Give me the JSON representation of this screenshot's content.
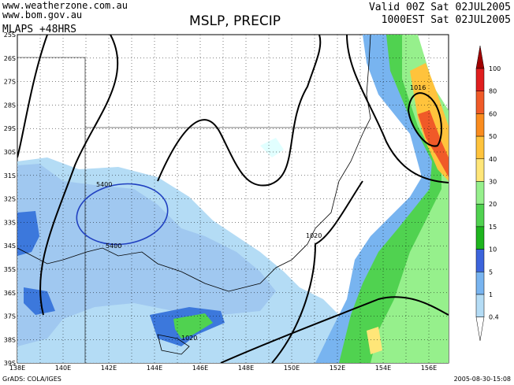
{
  "header": {
    "site1": "www.weatherzone.com.au",
    "site2": "www.bom.gov.au",
    "model": "MLAPS +48HRS",
    "title": "MSLP, PRECIP",
    "valid": "Valid 00Z Sat 02JUL2005",
    "local": "1000EST Sat 02JUL2005"
  },
  "latitudes": [
    "25S",
    "26S",
    "27S",
    "28S",
    "29S",
    "30S",
    "31S",
    "32S",
    "33S",
    "34S",
    "35S",
    "36S",
    "37S",
    "38S",
    "39S"
  ],
  "longitudes": [
    "138E",
    "140E",
    "142E",
    "144E",
    "146E",
    "148E",
    "150E",
    "152E",
    "154E",
    "156E"
  ],
  "legend": [
    "100",
    "80",
    "60",
    "50",
    "40",
    "30",
    "20",
    "15",
    "10",
    "5",
    "1",
    "0.4"
  ],
  "contour_labels": [
    "1016",
    "5400",
    "5400",
    "1020",
    "1020"
  ],
  "footer": {
    "left": "GrADS: COLA/IGES",
    "right": "2005-08-30-15:08"
  }
}
